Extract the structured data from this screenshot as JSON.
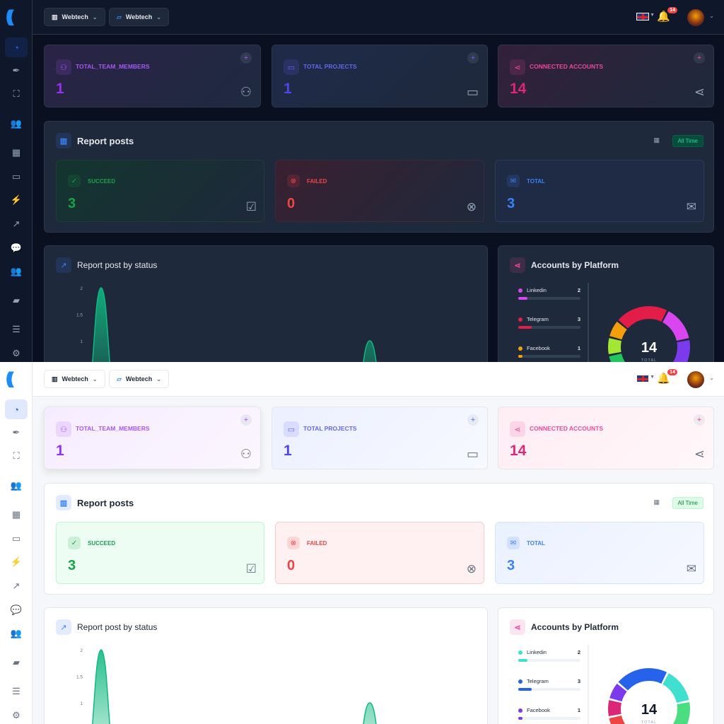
{
  "header": {
    "workspace_select": "Webtech",
    "project_select": "Webtech",
    "language": "EN",
    "notification_count": "14"
  },
  "sidebar": {
    "items": [
      {
        "icon": "dashboard-icon",
        "glyph": "◔",
        "active": true
      },
      {
        "icon": "pen-icon",
        "glyph": "✒"
      },
      {
        "icon": "sitemap-icon",
        "glyph": "⛶"
      },
      {
        "icon": "users-icon",
        "glyph": "👥"
      },
      {
        "icon": "calendar-icon",
        "glyph": "▦"
      },
      {
        "icon": "inbox-icon",
        "glyph": "▭"
      },
      {
        "icon": "plug-icon",
        "glyph": "⚡"
      },
      {
        "icon": "chart-line-icon",
        "glyph": "↗"
      },
      {
        "icon": "comments-icon",
        "glyph": "💬"
      },
      {
        "icon": "user-group-icon",
        "glyph": "👥"
      },
      {
        "icon": "folder-icon",
        "glyph": "▰"
      },
      {
        "icon": "list-check-icon",
        "glyph": "☰"
      },
      {
        "icon": "gear-icon",
        "glyph": "⚙"
      }
    ]
  },
  "stats": [
    {
      "label": "TOTAL_TEAM_MEMBERS",
      "value": "1",
      "color": "#a855f7",
      "icon": "users-icon"
    },
    {
      "label": "TOTAL PROJECTS",
      "value": "1",
      "color": "#6366f1",
      "icon": "folder-icon"
    },
    {
      "label": "CONNECTED ACCOUNTS",
      "value": "14",
      "color": "#ec4899",
      "icon": "share-icon"
    }
  ],
  "report_posts": {
    "title": "Report posts",
    "filter": "All Time",
    "items": [
      {
        "label": "SUCCEED",
        "value": "3",
        "color": "#16a34a"
      },
      {
        "label": "FAILED",
        "value": "0",
        "color": "#ef4444"
      },
      {
        "label": "TOTAL",
        "value": "3",
        "color": "#3b82f6"
      }
    ]
  },
  "status_chart": {
    "title": "Report post by status"
  },
  "accounts": {
    "title": "Accounts by Platform",
    "total_label": "TOTAL"
  },
  "chart_data": [
    {
      "type": "area",
      "y_ticks": [
        "2",
        "1.5",
        "1"
      ],
      "series": [
        {
          "color": "#10b981",
          "values": [
            0,
            0,
            2,
            0,
            0,
            0,
            0,
            0,
            0,
            0,
            0,
            0,
            0,
            0,
            0,
            0,
            0,
            0,
            0,
            0,
            0,
            1,
            0,
            0,
            0,
            0,
            0,
            0,
            0
          ]
        }
      ]
    },
    {
      "type": "pie",
      "total": "14",
      "legend": [
        {
          "name": "Linkedin",
          "value": "2"
        },
        {
          "name": "Telegram",
          "value": "3"
        },
        {
          "name": "Facebook",
          "value": "1"
        }
      ],
      "segments": [
        3,
        2,
        2,
        2,
        2,
        1,
        1,
        1
      ],
      "colors": {
        "dark": [
          "#e11d48",
          "#d946ef",
          "#7c3aed",
          "#3b82f6",
          "#14b8a6",
          "#22c55e",
          "#a3e635",
          "#f59e0b"
        ],
        "light": [
          "#2563eb",
          "#40e0d0",
          "#4ade80",
          "#f59e0b",
          "#f97316",
          "#ef4444",
          "#db2777",
          "#7c3aed"
        ]
      },
      "legend_colors": {
        "dark": [
          "#d946ef",
          "#e11d48",
          "#f59e0b"
        ],
        "light": [
          "#40e0d0",
          "#2563eb",
          "#7c3aed"
        ]
      }
    }
  ]
}
